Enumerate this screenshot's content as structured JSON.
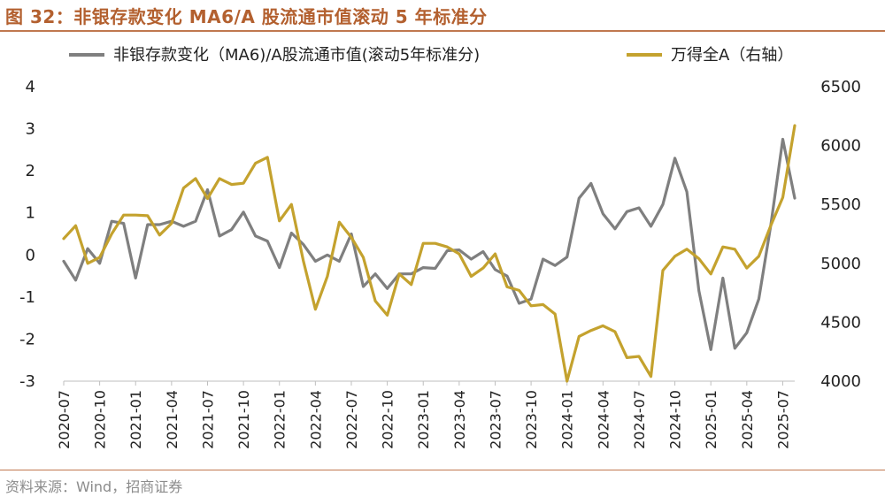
{
  "figure_title": "图 32：非银存款变化 MA6/A 股流通市值滚动 5 年标准分",
  "source_note": "资料来源：Wind，招商证券",
  "chart_data": {
    "type": "line",
    "title": "非银存款变化 MA6/A 股流通市值滚动 5 年标准分",
    "x": [
      "2020-07",
      "2020-08",
      "2020-09",
      "2020-10",
      "2020-11",
      "2020-12",
      "2021-01",
      "2021-02",
      "2021-03",
      "2021-04",
      "2021-05",
      "2021-06",
      "2021-07",
      "2021-08",
      "2021-09",
      "2021-10",
      "2021-11",
      "2021-12",
      "2022-01",
      "2022-02",
      "2022-03",
      "2022-04",
      "2022-05",
      "2022-06",
      "2022-07",
      "2022-08",
      "2022-09",
      "2022-10",
      "2022-11",
      "2022-12",
      "2023-01",
      "2023-02",
      "2023-03",
      "2023-04",
      "2023-05",
      "2023-06",
      "2023-07",
      "2023-08",
      "2023-09",
      "2023-10",
      "2023-11",
      "2023-12",
      "2024-01",
      "2024-02",
      "2024-03",
      "2024-04",
      "2024-05",
      "2024-06",
      "2024-07",
      "2024-08",
      "2024-09",
      "2024-10",
      "2024-11",
      "2024-12",
      "2025-01",
      "2025-02",
      "2025-03",
      "2025-04",
      "2025-05",
      "2025-06",
      "2025-07",
      "2025-08"
    ],
    "xtick_labels": [
      "2020-07",
      "2020-10",
      "2021-01",
      "2021-04",
      "2021-07",
      "2021-10",
      "2022-01",
      "2022-04",
      "2022-07",
      "2022-10",
      "2023-01",
      "2023-04",
      "2023-07",
      "2023-10",
      "2024-01",
      "2024-04",
      "2024-07",
      "2024-10",
      "2025-01",
      "2025-04",
      "2025-07"
    ],
    "series": [
      {
        "name": "非银存款变化（MA6)/A股流通市值(滚动5年标准分)",
        "axis": "left",
        "color": "#7f7f7f",
        "values": [
          -0.15,
          -0.6,
          0.15,
          -0.2,
          0.8,
          0.75,
          -0.55,
          0.72,
          0.72,
          0.8,
          0.68,
          0.8,
          1.55,
          0.45,
          0.6,
          1.02,
          0.45,
          0.33,
          -0.3,
          0.52,
          0.25,
          -0.15,
          0.0,
          -0.15,
          0.5,
          -0.75,
          -0.45,
          -0.8,
          -0.45,
          -0.45,
          -0.3,
          -0.32,
          0.1,
          0.12,
          -0.1,
          0.08,
          -0.35,
          -0.5,
          -1.15,
          -1.05,
          -0.1,
          -0.25,
          -0.05,
          1.35,
          1.7,
          0.98,
          0.62,
          1.03,
          1.12,
          0.68,
          1.2,
          2.3,
          1.5,
          -0.85,
          -2.25,
          -0.55,
          -2.22,
          -1.85,
          -1.05,
          0.7,
          2.75,
          1.35
        ]
      },
      {
        "name": "万得全A（右轴）",
        "axis": "right",
        "color": "#c4a22e",
        "values": [
          5210,
          5320,
          5000,
          5050,
          5250,
          5410,
          5410,
          5405,
          5240,
          5340,
          5640,
          5720,
          5550,
          5720,
          5670,
          5680,
          5850,
          5900,
          5360,
          5500,
          5020,
          4610,
          4890,
          5350,
          5220,
          5050,
          4680,
          4560,
          4910,
          4820,
          5170,
          5170,
          5140,
          5080,
          4890,
          4960,
          5080,
          4800,
          4770,
          4640,
          4650,
          4570,
          4000,
          4380,
          4430,
          4470,
          4420,
          4200,
          4210,
          4040,
          4940,
          5060,
          5120,
          5040,
          4910,
          5140,
          5120,
          4960,
          5060,
          5320,
          5560,
          6170
        ]
      }
    ],
    "y_left": {
      "ylim": [
        -3,
        4
      ],
      "ticks": [
        "-3",
        "-2",
        "-1",
        "0",
        "1",
        "2",
        "3",
        "4"
      ]
    },
    "y_right": {
      "ylim": [
        4000,
        6500
      ],
      "ticks": [
        "4000",
        "4500",
        "5000",
        "5500",
        "6000",
        "6500"
      ]
    },
    "legend": {
      "position": "top",
      "labels": [
        "非银存款变化（MA6)/A股流通市值(滚动5年标准分)",
        "万得全A（右轴）"
      ]
    },
    "grid": false
  }
}
